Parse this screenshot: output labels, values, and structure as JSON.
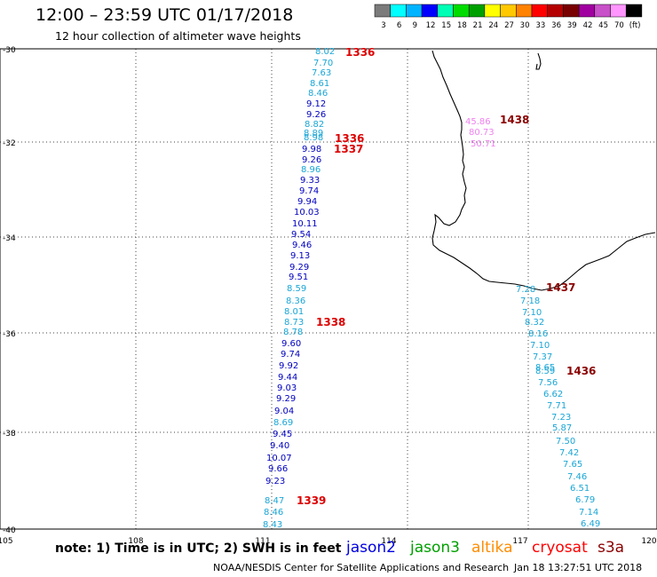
{
  "header": {
    "title": "12:00 – 23:59 UTC 01/17/2018",
    "subtitle": "12 hour collection of altimeter wave heights"
  },
  "legend": {
    "colors": [
      "#7b7b7b",
      "#00ffff",
      "#00b4ff",
      "#0000ff",
      "#00ffb4",
      "#00dc00",
      "#00a000",
      "#ffff00",
      "#ffc800",
      "#ff8200",
      "#ff0000",
      "#b40000",
      "#780000",
      "#a000a0",
      "#c850c8",
      "#ff96ff",
      "#000000"
    ],
    "labels": [
      "3",
      "6",
      "9",
      "12",
      "15",
      "18",
      "21",
      "24",
      "27",
      "30",
      "33",
      "36",
      "39",
      "42",
      "45",
      "70",
      "(ft)"
    ]
  },
  "axes": {
    "lat_labels": [
      "-30",
      "-32",
      "-34",
      "-36",
      "-38",
      "-40"
    ],
    "lon_labels": [
      "105",
      "108",
      "111",
      "114",
      "117",
      "120"
    ]
  },
  "footer": {
    "note": "note: 1) Time is in UTC; 2) SWH is in feet",
    "credit": "NOAA/NESDIS Center for Satellite Applications and Research",
    "timestamp": "Jan 18 13:27:51 UTC 2018"
  },
  "satellites": [
    {
      "name": "jason2",
      "color": "#0000e0"
    },
    {
      "name": "jason3",
      "color": "#00a000"
    },
    {
      "name": "altika",
      "color": "#ff8c00"
    },
    {
      "name": "cryosat",
      "color": "#ff0000"
    },
    {
      "name": "s3a",
      "color": "#8b0000"
    }
  ],
  "pass_times": [
    {
      "text": "1336",
      "color": "#dd0000"
    },
    {
      "text": "1336",
      "color": "#dd0000"
    },
    {
      "text": "1337",
      "color": "#dd0000"
    },
    {
      "text": "1338",
      "color": "#dd0000"
    },
    {
      "text": "1339",
      "color": "#dd0000"
    },
    {
      "text": "1438",
      "color": "#8b0000"
    },
    {
      "text": "1437",
      "color": "#8b0000"
    },
    {
      "text": "1436",
      "color": "#8b0000"
    }
  ],
  "track_a": [
    {
      "v": "8.02",
      "c": "#1aa6d6"
    },
    {
      "v": "7.70",
      "c": "#1aa6d6"
    },
    {
      "v": "7.63",
      "c": "#1aa6d6"
    },
    {
      "v": "8.61",
      "c": "#1aa6d6"
    },
    {
      "v": "8.46",
      "c": "#1aa6d6"
    },
    {
      "v": "9.12",
      "c": "#0000c0"
    },
    {
      "v": "9.26",
      "c": "#0000c0"
    },
    {
      "v": "8.82",
      "c": "#1aa6d6"
    },
    {
      "v": "8.89",
      "c": "#1aa6d6"
    },
    {
      "v": "8.98",
      "c": "#1aa6d6"
    },
    {
      "v": "9.98",
      "c": "#0000c0"
    },
    {
      "v": "9.26",
      "c": "#0000c0"
    },
    {
      "v": "8.96",
      "c": "#1aa6d6"
    },
    {
      "v": "9.33",
      "c": "#0000c0"
    },
    {
      "v": "9.74",
      "c": "#0000c0"
    },
    {
      "v": "9.94",
      "c": "#0000c0"
    },
    {
      "v": "10.03",
      "c": "#0000c0"
    },
    {
      "v": "10.11",
      "c": "#0000c0"
    },
    {
      "v": "9.54",
      "c": "#0000c0"
    },
    {
      "v": "9.46",
      "c": "#0000c0"
    },
    {
      "v": "9.13",
      "c": "#0000c0"
    },
    {
      "v": "9.29",
      "c": "#0000c0"
    },
    {
      "v": "9.51",
      "c": "#0000c0"
    },
    {
      "v": "8.59",
      "c": "#1aa6d6"
    },
    {
      "v": "8.36",
      "c": "#1aa6d6"
    },
    {
      "v": "8.01",
      "c": "#1aa6d6"
    },
    {
      "v": "8.73",
      "c": "#1aa6d6"
    },
    {
      "v": "8.78",
      "c": "#1aa6d6"
    },
    {
      "v": "9.60",
      "c": "#0000c0"
    },
    {
      "v": "9.74",
      "c": "#0000c0"
    },
    {
      "v": "9.92",
      "c": "#0000c0"
    },
    {
      "v": "9.44",
      "c": "#0000c0"
    },
    {
      "v": "9.03",
      "c": "#0000c0"
    },
    {
      "v": "9.29",
      "c": "#0000c0"
    },
    {
      "v": "9.04",
      "c": "#0000c0"
    },
    {
      "v": "8.69",
      "c": "#1aa6d6"
    },
    {
      "v": "9.45",
      "c": "#0000c0"
    },
    {
      "v": "9.40",
      "c": "#0000c0"
    },
    {
      "v": "10.07",
      "c": "#0000c0"
    },
    {
      "v": "9.66",
      "c": "#0000c0"
    },
    {
      "v": "9.23",
      "c": "#0000c0"
    },
    {
      "v": "8.47",
      "c": "#1aa6d6"
    },
    {
      "v": "8.46",
      "c": "#1aa6d6"
    },
    {
      "v": "8.43",
      "c": "#1aa6d6"
    }
  ],
  "track_b": [
    {
      "v": "45.86",
      "c": "#ee82ee"
    },
    {
      "v": "80.73",
      "c": "#ee82ee"
    },
    {
      "v": "50.71",
      "c": "#ee82ee"
    }
  ],
  "track_c": [
    {
      "v": "7.28",
      "c": "#1aa6d6"
    },
    {
      "v": "7.18",
      "c": "#1aa6d6"
    },
    {
      "v": "7.10",
      "c": "#1aa6d6"
    },
    {
      "v": "8.32",
      "c": "#1aa6d6"
    },
    {
      "v": "8.16",
      "c": "#1aa6d6"
    },
    {
      "v": "7.10",
      "c": "#1aa6d6"
    },
    {
      "v": "7.37",
      "c": "#1aa6d6"
    },
    {
      "v": "8.65",
      "c": "#1aa6d6"
    },
    {
      "v": "8.59",
      "c": "#1aa6d6"
    },
    {
      "v": "7.56",
      "c": "#1aa6d6"
    },
    {
      "v": "6.62",
      "c": "#1aa6d6"
    },
    {
      "v": "7.71",
      "c": "#1aa6d6"
    },
    {
      "v": "7.23",
      "c": "#1aa6d6"
    },
    {
      "v": "5.87",
      "c": "#1aa6d6"
    },
    {
      "v": "7.50",
      "c": "#1aa6d6"
    },
    {
      "v": "7.42",
      "c": "#1aa6d6"
    },
    {
      "v": "7.65",
      "c": "#1aa6d6"
    },
    {
      "v": "7.46",
      "c": "#1aa6d6"
    },
    {
      "v": "6.51",
      "c": "#1aa6d6"
    },
    {
      "v": "6.79",
      "c": "#1aa6d6"
    },
    {
      "v": "7.14",
      "c": "#1aa6d6"
    },
    {
      "v": "6.49",
      "c": "#1aa6d6"
    }
  ]
}
